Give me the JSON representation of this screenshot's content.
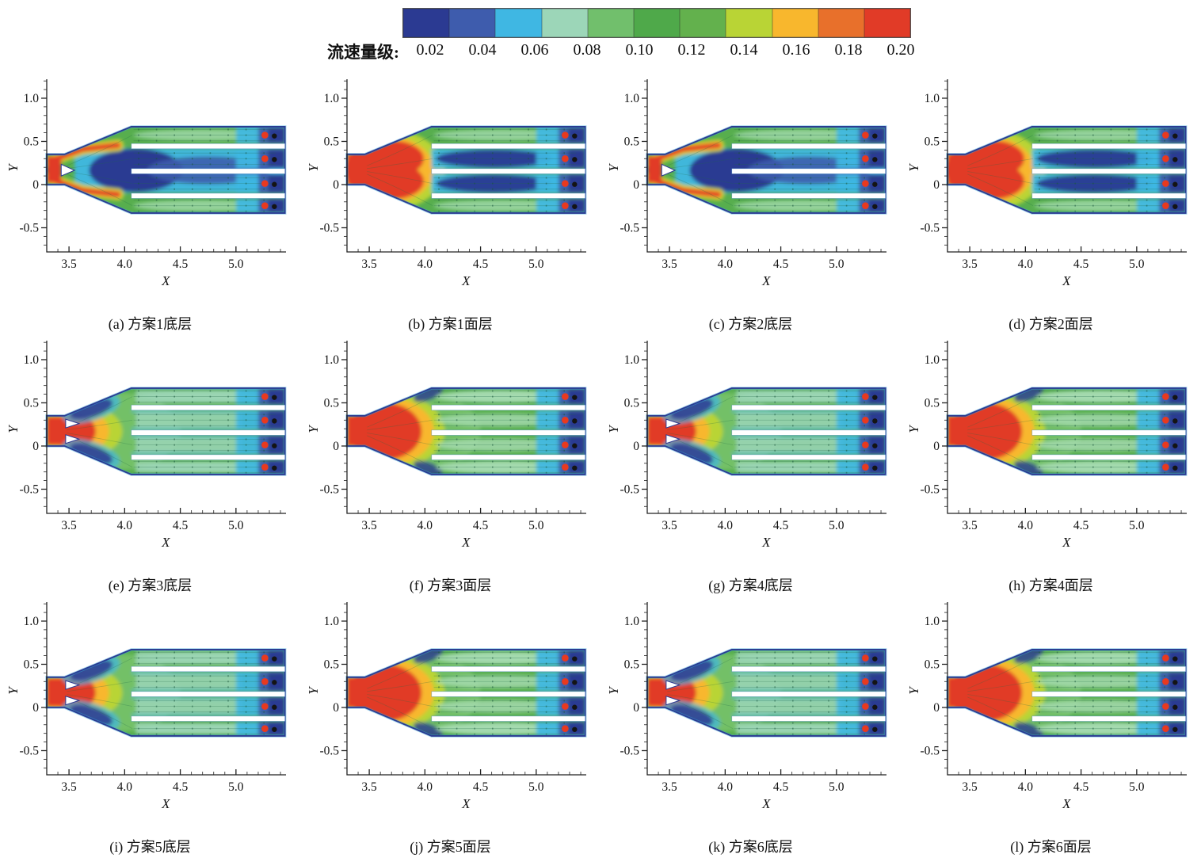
{
  "chart_data": {
    "type": "heatmap",
    "title": "",
    "description": "12 CFD velocity-magnitude contour subplots (3 rows x 4 cols) of a fishway inlet expanding into four parallel channels, with streamlines and monitoring points",
    "layout": {
      "rows": 3,
      "cols": 4,
      "legend_position": "top-center",
      "grid": false
    },
    "colorbar": {
      "label": "流速量级:",
      "level_labels": [
        "0.02",
        "0.04",
        "0.06",
        "0.08",
        "0.10",
        "0.12",
        "0.14",
        "0.16",
        "0.18",
        "0.20"
      ],
      "levels": [
        0.02,
        0.04,
        0.06,
        0.08,
        0.1,
        0.12,
        0.14,
        0.16,
        0.18,
        0.2
      ],
      "colors": [
        "#2b3a92",
        "#3e5cad",
        "#3fb7e3",
        "#9cd6b8",
        "#71bf6c",
        "#4fa94a",
        "#63b14d",
        "#b9d435",
        "#f8b72d",
        "#e8702b",
        "#e13b27"
      ]
    },
    "axes": {
      "xlabel": "X",
      "ylabel": "Y",
      "xtick_labels": [
        "3.5",
        "4.0",
        "4.5",
        "5.0"
      ],
      "xtick_values": [
        3.5,
        4.0,
        4.5,
        5.0
      ],
      "ytick_labels": [
        "1.0",
        "0.5",
        "0",
        "-0.5"
      ],
      "ytick_values": [
        1.0,
        0.5,
        0,
        -0.5
      ],
      "xlim": [
        3.3,
        5.45
      ],
      "ylim": [
        -0.78,
        1.22
      ],
      "minor_tick_step": 0.1
    },
    "geometry": {
      "inlet": {
        "x": [
          3.3,
          3.46
        ],
        "y": [
          0.0,
          0.35
        ]
      },
      "expansion": {
        "x": [
          3.46,
          4.06
        ]
      },
      "main_section": {
        "x": [
          4.06,
          5.44
        ],
        "y": [
          -0.33,
          0.67
        ]
      },
      "divider_slots_y": [
        [
          0.415,
          0.475
        ],
        [
          0.125,
          0.185
        ],
        [
          -0.16,
          -0.1
        ]
      ],
      "channel_centers_y": [
        0.5725,
        0.3,
        0.0125,
        -0.245
      ],
      "monitor_points": {
        "red_x": 5.26,
        "black_x": 5.345
      }
    },
    "subplots": [
      {
        "id": "a",
        "caption": "(a) 方案1底层",
        "scheme": "方案1",
        "layer": "底层",
        "pattern": "v-jet",
        "flow": "split red jets along expansion walls, large low-velocity (dark blue) recirculation in middle channels"
      },
      {
        "id": "b",
        "caption": "(b) 方案1面层",
        "scheme": "方案1",
        "layer": "面层",
        "pattern": "face-recirc",
        "flow": "strong red surface jet at inlet, dark blue wakes in the two middle channels"
      },
      {
        "id": "c",
        "caption": "(c) 方案2底层",
        "scheme": "方案2",
        "layer": "底层",
        "pattern": "v-jet",
        "flow": "split red jets with central blue recirculation zone"
      },
      {
        "id": "d",
        "caption": "(d) 方案2面层",
        "scheme": "方案2",
        "layer": "面层",
        "pattern": "face-recirc",
        "flow": "red surface jet, cyan/blue low-velocity middle channels"
      },
      {
        "id": "e",
        "caption": "(e) 方案3底层",
        "scheme": "方案3",
        "layer": "底层",
        "pattern": "bottom-confined",
        "flow": "red jet confined near inlet, blue corner pockets, uniform green channels"
      },
      {
        "id": "f",
        "caption": "(f) 方案3面层",
        "scheme": "方案3",
        "layer": "面层",
        "pattern": "face-uniform",
        "flow": "red inlet dome, fairly uniform green flow in all four channels"
      },
      {
        "id": "g",
        "caption": "(g) 方案4底层",
        "scheme": "方案4",
        "layer": "底层",
        "pattern": "bottom-confined",
        "flow": "confined red jet with small deflectors, uniform channels"
      },
      {
        "id": "h",
        "caption": "(h) 方案4面层",
        "scheme": "方案4",
        "layer": "面层",
        "pattern": "face-uniform",
        "flow": "red inlet dome, uniform pale-green channel flow"
      },
      {
        "id": "i",
        "caption": "(i) 方案5底层",
        "scheme": "方案5",
        "layer": "底层",
        "pattern": "bottom-confined",
        "flow": "red jet with twin white deflectors, uniform channels"
      },
      {
        "id": "j",
        "caption": "(j) 方案5面层",
        "scheme": "方案5",
        "layer": "面层",
        "pattern": "face-uniform",
        "flow": "red inlet dome, uniform channels"
      },
      {
        "id": "k",
        "caption": "(k) 方案6底层",
        "scheme": "方案6",
        "layer": "底层",
        "pattern": "bottom-confined",
        "flow": "red jet with twin deflectors, green channels, navy outlet ends"
      },
      {
        "id": "l",
        "caption": "(l) 方案6面层",
        "scheme": "方案6",
        "layer": "面层",
        "pattern": "face-uniform",
        "flow": "red inlet dome, uniform channels"
      }
    ]
  }
}
